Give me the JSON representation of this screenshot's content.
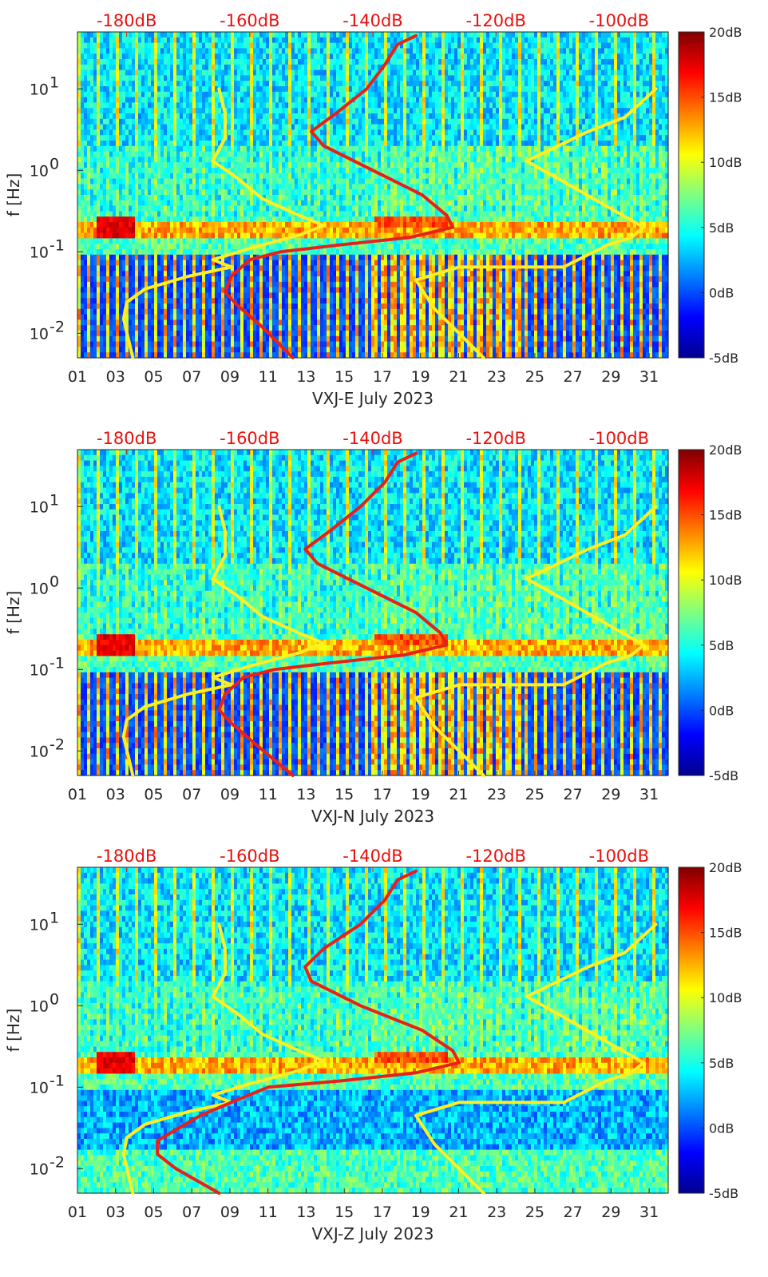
{
  "chart_data": [
    {
      "type": "heatmap",
      "xlabel": "VXJ-E July 2023",
      "ylabel": "f [Hz]",
      "yscale": "log",
      "ylim": [
        0.005,
        50
      ],
      "xlim": [
        1,
        32
      ],
      "xticks": [
        "01",
        "03",
        "05",
        "07",
        "09",
        "11",
        "13",
        "15",
        "17",
        "19",
        "21",
        "23",
        "25",
        "27",
        "29",
        "31"
      ],
      "yticks": [
        "10-2",
        "10-1",
        "100",
        "101"
      ],
      "top_axis": {
        "ticks": [
          "-180dB",
          "-160dB",
          "-140dB",
          "-120dB",
          "-100dB"
        ],
        "range_db": [
          -188,
          -92
        ],
        "color": "#e8100c"
      },
      "colorbar": {
        "ticks": [
          "20dB",
          "15dB",
          "10dB",
          "5dB",
          "0dB",
          "-5dB"
        ],
        "range_db": [
          -5,
          20
        ],
        "colormap": "jet"
      },
      "series": [
        {
          "color": "#ffee22",
          "points_db_hz": [
            [
              -179,
              0.005
            ],
            [
              -180.5,
              0.015
            ],
            [
              -180,
              0.024
            ],
            [
              -177,
              0.035
            ],
            [
              -170,
              0.05
            ],
            [
              -163,
              0.065
            ],
            [
              -166,
              0.08
            ],
            [
              -160,
              0.11
            ],
            [
              -152,
              0.16
            ],
            [
              -148,
              0.21
            ],
            [
              -152,
              0.28
            ],
            [
              -158,
              0.45
            ],
            [
              -162,
              0.8
            ],
            [
              -166,
              1.3
            ],
            [
              -164,
              2.5
            ],
            [
              -164,
              5
            ],
            [
              -165,
              10
            ]
          ]
        },
        {
          "color": "#ffee22",
          "points_db_hz": [
            [
              -122,
              0.005
            ],
            [
              -130,
              0.02
            ],
            [
              -133,
              0.045
            ],
            [
              -126,
              0.065
            ],
            [
              -109,
              0.065
            ],
            [
              -102,
              0.12
            ],
            [
              -98,
              0.15
            ],
            [
              -96,
              0.2
            ],
            [
              -103,
              0.4
            ],
            [
              -110,
              0.8
            ],
            [
              -115,
              1.3
            ],
            [
              -105,
              3
            ],
            [
              -99,
              4.5
            ],
            [
              -94,
              10
            ]
          ]
        },
        {
          "color": "#e8201a",
          "points_db_hz": [
            [
              -153,
              0.005
            ],
            [
              -158,
              0.012
            ],
            [
              -162,
              0.022
            ],
            [
              -164,
              0.032
            ],
            [
              -163,
              0.05
            ],
            [
              -160,
              0.08
            ],
            [
              -155,
              0.1
            ],
            [
              -146,
              0.12
            ],
            [
              -134,
              0.15
            ],
            [
              -127,
              0.2
            ],
            [
              -128,
              0.28
            ],
            [
              -132,
              0.5
            ],
            [
              -140,
              1
            ],
            [
              -148,
              2
            ],
            [
              -150,
              3
            ],
            [
              -146,
              5
            ],
            [
              -141,
              10
            ],
            [
              -138,
              20
            ],
            [
              -136,
              35
            ],
            [
              -133,
              45
            ]
          ]
        }
      ]
    },
    {
      "type": "heatmap",
      "xlabel": "VXJ-N July 2023",
      "ylabel": "f [Hz]",
      "yscale": "log",
      "ylim": [
        0.005,
        50
      ],
      "xlim": [
        1,
        32
      ],
      "xticks": [
        "01",
        "03",
        "05",
        "07",
        "09",
        "11",
        "13",
        "15",
        "17",
        "19",
        "21",
        "23",
        "25",
        "27",
        "29",
        "31"
      ],
      "yticks": [
        "10-2",
        "10-1",
        "100",
        "101"
      ],
      "top_axis": {
        "ticks": [
          "-180dB",
          "-160dB",
          "-140dB",
          "-120dB",
          "-100dB"
        ],
        "range_db": [
          -188,
          -92
        ],
        "color": "#e8100c"
      },
      "colorbar": {
        "ticks": [
          "20dB",
          "15dB",
          "10dB",
          "5dB",
          "0dB",
          "-5dB"
        ],
        "range_db": [
          -5,
          20
        ],
        "colormap": "jet"
      },
      "series": [
        {
          "color": "#ffee22",
          "points_db_hz": [
            [
              -179,
              0.005
            ],
            [
              -180.5,
              0.015
            ],
            [
              -180,
              0.024
            ],
            [
              -177,
              0.035
            ],
            [
              -170,
              0.05
            ],
            [
              -163,
              0.065
            ],
            [
              -166,
              0.08
            ],
            [
              -160,
              0.11
            ],
            [
              -152,
              0.16
            ],
            [
              -148,
              0.21
            ],
            [
              -152,
              0.28
            ],
            [
              -158,
              0.45
            ],
            [
              -162,
              0.8
            ],
            [
              -166,
              1.3
            ],
            [
              -164,
              2.5
            ],
            [
              -164,
              5
            ],
            [
              -165,
              10
            ]
          ]
        },
        {
          "color": "#ffee22",
          "points_db_hz": [
            [
              -122,
              0.005
            ],
            [
              -130,
              0.02
            ],
            [
              -133,
              0.045
            ],
            [
              -126,
              0.065
            ],
            [
              -109,
              0.065
            ],
            [
              -102,
              0.12
            ],
            [
              -98,
              0.15
            ],
            [
              -96,
              0.2
            ],
            [
              -103,
              0.4
            ],
            [
              -110,
              0.8
            ],
            [
              -115,
              1.3
            ],
            [
              -105,
              3
            ],
            [
              -99,
              4.5
            ],
            [
              -94,
              10
            ]
          ]
        },
        {
          "color": "#e8201a",
          "points_db_hz": [
            [
              -153,
              0.005
            ],
            [
              -159,
              0.012
            ],
            [
              -163,
              0.022
            ],
            [
              -165,
              0.032
            ],
            [
              -164,
              0.05
            ],
            [
              -161,
              0.08
            ],
            [
              -156,
              0.1
            ],
            [
              -147,
              0.12
            ],
            [
              -135,
              0.15
            ],
            [
              -128,
              0.2
            ],
            [
              -129,
              0.28
            ],
            [
              -133,
              0.5
            ],
            [
              -141,
              1
            ],
            [
              -149,
              2
            ],
            [
              -151,
              3
            ],
            [
              -147,
              5
            ],
            [
              -142,
              10
            ],
            [
              -138,
              20
            ],
            [
              -136,
              35
            ],
            [
              -133,
              45
            ]
          ]
        }
      ]
    },
    {
      "type": "heatmap",
      "xlabel": "VXJ-Z July 2023",
      "ylabel": "f [Hz]",
      "yscale": "log",
      "ylim": [
        0.005,
        50
      ],
      "xlim": [
        1,
        32
      ],
      "xticks": [
        "01",
        "03",
        "05",
        "07",
        "09",
        "11",
        "13",
        "15",
        "17",
        "19",
        "21",
        "23",
        "25",
        "27",
        "29",
        "31"
      ],
      "yticks": [
        "10-2",
        "10-1",
        "100",
        "101"
      ],
      "top_axis": {
        "ticks": [
          "-180dB",
          "-160dB",
          "-140dB",
          "-120dB",
          "-100dB"
        ],
        "range_db": [
          -188,
          -92
        ],
        "color": "#e8100c"
      },
      "colorbar": {
        "ticks": [
          "20dB",
          "15dB",
          "10dB",
          "5dB",
          "0dB",
          "-5dB"
        ],
        "range_db": [
          -5,
          20
        ],
        "colormap": "jet"
      },
      "series": [
        {
          "color": "#ffee22",
          "points_db_hz": [
            [
              -179,
              0.005
            ],
            [
              -180.5,
              0.015
            ],
            [
              -180,
              0.024
            ],
            [
              -177,
              0.035
            ],
            [
              -170,
              0.05
            ],
            [
              -163,
              0.065
            ],
            [
              -166,
              0.08
            ],
            [
              -160,
              0.11
            ],
            [
              -152,
              0.16
            ],
            [
              -148,
              0.21
            ],
            [
              -152,
              0.28
            ],
            [
              -158,
              0.45
            ],
            [
              -162,
              0.8
            ],
            [
              -166,
              1.3
            ],
            [
              -164,
              2.5
            ],
            [
              -164,
              5
            ],
            [
              -165,
              10
            ]
          ]
        },
        {
          "color": "#ffee22",
          "points_db_hz": [
            [
              -122,
              0.005
            ],
            [
              -130,
              0.02
            ],
            [
              -133,
              0.045
            ],
            [
              -126,
              0.065
            ],
            [
              -109,
              0.065
            ],
            [
              -102,
              0.12
            ],
            [
              -98,
              0.15
            ],
            [
              -96,
              0.2
            ],
            [
              -103,
              0.4
            ],
            [
              -110,
              0.8
            ],
            [
              -115,
              1.3
            ],
            [
              -105,
              3
            ],
            [
              -99,
              4.5
            ],
            [
              -94,
              10
            ]
          ]
        },
        {
          "color": "#e8201a",
          "points_db_hz": [
            [
              -165,
              0.005
            ],
            [
              -172,
              0.01
            ],
            [
              -175,
              0.015
            ],
            [
              -175,
              0.022
            ],
            [
              -172,
              0.03
            ],
            [
              -168,
              0.045
            ],
            [
              -162,
              0.07
            ],
            [
              -157,
              0.1
            ],
            [
              -145,
              0.12
            ],
            [
              -133,
              0.15
            ],
            [
              -126,
              0.2
            ],
            [
              -127,
              0.28
            ],
            [
              -132,
              0.5
            ],
            [
              -142,
              1
            ],
            [
              -150,
              2
            ],
            [
              -151,
              3
            ],
            [
              -148,
              5
            ],
            [
              -142,
              10
            ],
            [
              -138,
              20
            ],
            [
              -136,
              35
            ],
            [
              -133,
              45
            ]
          ]
        }
      ]
    }
  ]
}
